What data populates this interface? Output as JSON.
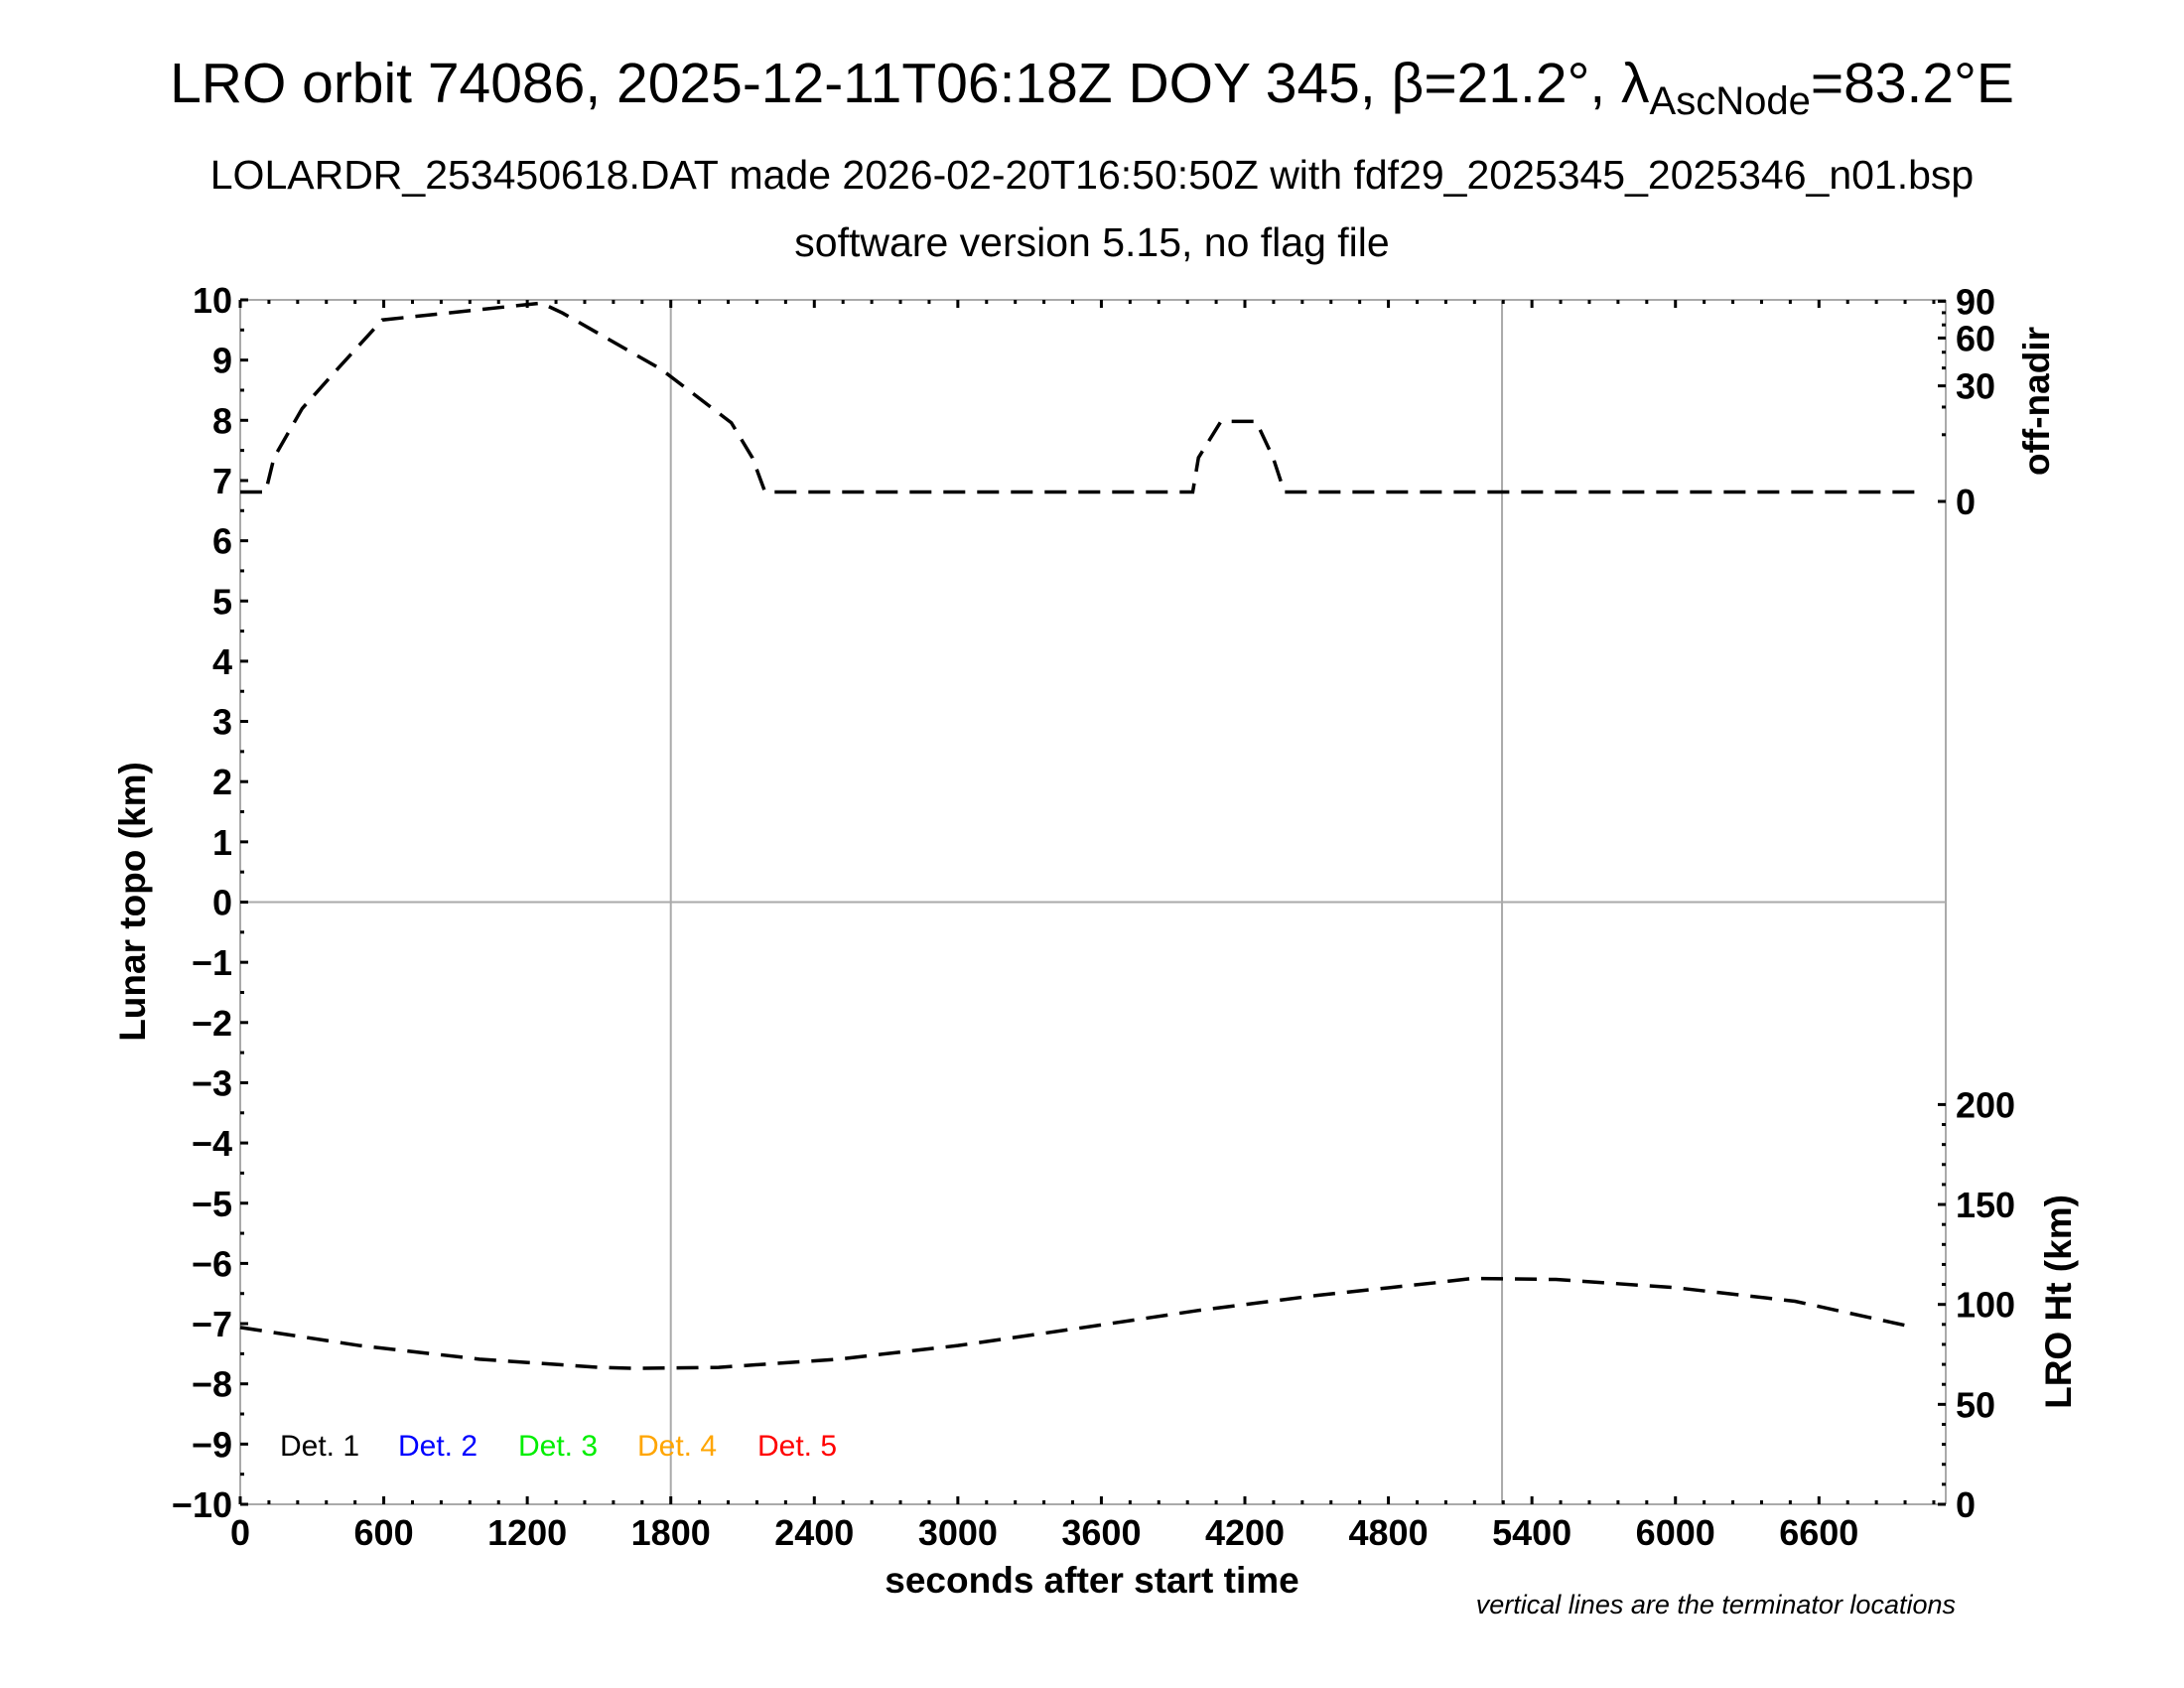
{
  "header": {
    "title_main": "LRO orbit 74086, 2025-12-11T06:18Z DOY 345, β=21.2°, λ",
    "title_sub": "AscNode",
    "title_end": "=83.2°E",
    "subtitle": "LOLARDR_253450618.DAT made 2026-02-20T16:50:50Z with fdf29_2025345_2025346_n01.bsp",
    "subtitle2": "software version 5.15, no flag file"
  },
  "note": "vertical lines are the terminator locations",
  "chart_data": {
    "type": "line",
    "xlabel": "seconds after start time",
    "xlim": [
      0,
      7130
    ],
    "xticks": [
      "0",
      "600",
      "1200",
      "1800",
      "2400",
      "3000",
      "3600",
      "4200",
      "4800",
      "5400",
      "6000",
      "6600"
    ],
    "ylabel": "Lunar topo (km)",
    "ylim": [
      -10,
      10
    ],
    "yticks": [
      "−10",
      "−9",
      "−8",
      "−7",
      "−6",
      "−5",
      "−4",
      "−3",
      "−2",
      "−1",
      "0",
      "1",
      "2",
      "3",
      "4",
      "5",
      "6",
      "7",
      "8",
      "9",
      "10"
    ],
    "y2_top_label": "off-nadir",
    "y2_top_ticks": [
      "0",
      "30",
      "60",
      "90"
    ],
    "y2_bottom_label": "LRO Ht (km)",
    "y2_bottom_ticks": [
      "0",
      "50",
      "100",
      "150",
      "200"
    ],
    "terminators_s": [
      1800,
      5275
    ],
    "legend": [
      {
        "label": "Det. 1",
        "color": "#000000"
      },
      {
        "label": "Det. 2",
        "color": "#0000ff"
      },
      {
        "label": "Det. 3",
        "color": "#00ee00"
      },
      {
        "label": "Det. 4",
        "color": "#ffa500"
      },
      {
        "label": "Det. 5",
        "color": "#ff0000"
      }
    ],
    "series": [
      {
        "name": "off-nadir (deg)",
        "x": [
          0,
          106,
          141,
          259,
          406,
          594,
          1259,
          1347,
          1759,
          2053,
          2141,
          2194,
          3982,
          4006,
          4100,
          4247,
          4318,
          4365,
          7000
        ],
        "y": [
          0.2,
          0.2,
          4.3,
          19.4,
          39.3,
          74,
          88.4,
          79.8,
          39.3,
          13.9,
          4.3,
          0.2,
          0.2,
          4.3,
          14.4,
          14.4,
          4.3,
          0.2,
          0.2
        ]
      },
      {
        "name": "LRO Ht (km)",
        "x": [
          0,
          500,
          1000,
          1500,
          1650,
          2000,
          2500,
          3000,
          3500,
          4000,
          4500,
          5000,
          5150,
          5500,
          6000,
          6500,
          7000
        ],
        "y": [
          88.5,
          79.4,
          72.6,
          68.5,
          68.0,
          68.5,
          72.6,
          79.4,
          88.0,
          96.9,
          104.5,
          110.9,
          113.0,
          112.5,
          108.4,
          101.6,
          88.5
        ]
      }
    ]
  }
}
